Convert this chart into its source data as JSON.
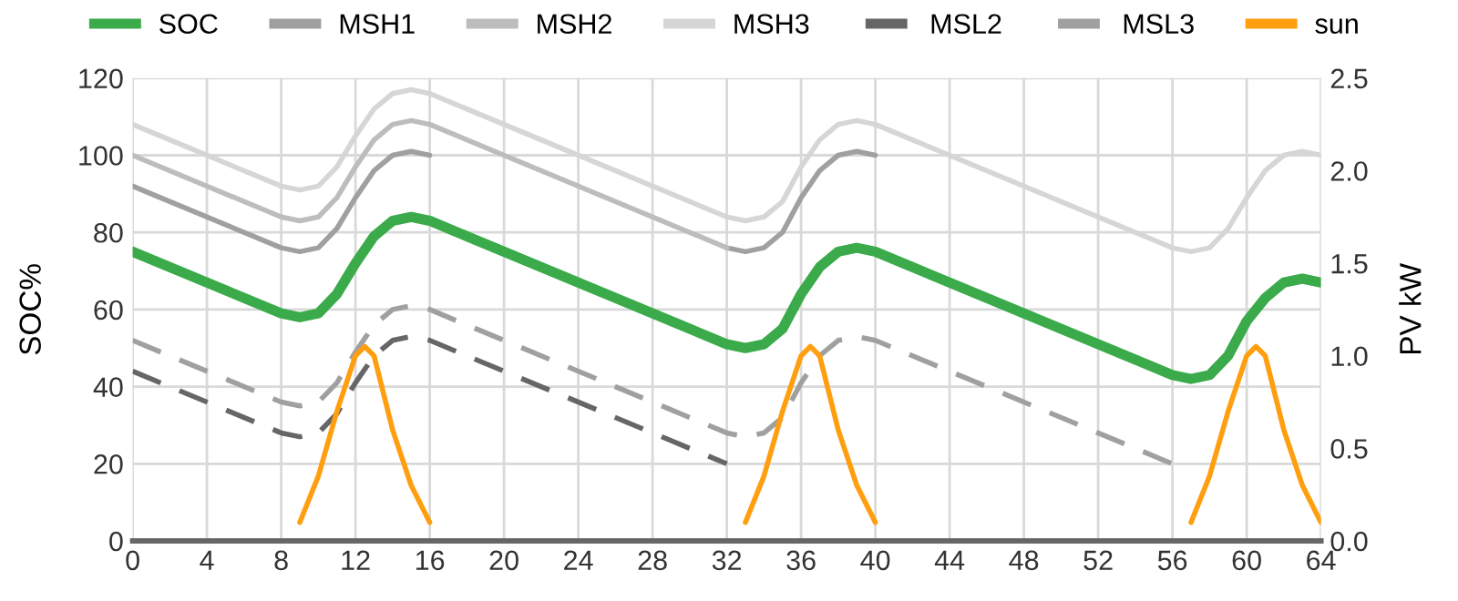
{
  "chart_data": {
    "type": "line",
    "ylabel": "SOC%",
    "y2label": "PV kW",
    "xlim": [
      0,
      64
    ],
    "xticks": [
      0,
      4,
      8,
      12,
      16,
      20,
      24,
      28,
      32,
      36,
      40,
      44,
      48,
      52,
      56,
      60,
      64
    ],
    "ylim": [
      0,
      120
    ],
    "yticks": [
      0,
      20,
      40,
      60,
      80,
      100,
      120
    ],
    "y2lim": [
      0,
      2.5
    ],
    "y2ticks": [
      {
        "value": 0,
        "label": "0.0"
      },
      0.5,
      {
        "value": 1,
        "label": "1.0"
      },
      1.5,
      {
        "value": 2,
        "label": "2.0"
      },
      2.5
    ],
    "grid": true,
    "legend": "top",
    "series": [
      {
        "name": "SOC",
        "color": "#3aaa4a",
        "line_style": "solid",
        "x": [
          0,
          8,
          9,
          10,
          11,
          12,
          13,
          14,
          15,
          16,
          32,
          33,
          34,
          35,
          36,
          37,
          38,
          39,
          40,
          56,
          57,
          58,
          59,
          60,
          61,
          62,
          63,
          64
        ],
        "values": [
          75,
          59,
          58,
          59,
          64,
          72,
          79,
          83,
          84,
          83,
          51,
          50,
          51,
          55,
          64,
          71,
          75,
          76,
          75,
          43,
          42,
          43,
          48,
          57,
          63,
          67,
          68,
          67
        ]
      },
      {
        "name": "MSH1",
        "color": "#a0a0a0",
        "line_style": "solid",
        "x": [
          0,
          8,
          9,
          10,
          11,
          12,
          13,
          14,
          15,
          16,
          24,
          32,
          33,
          34,
          35,
          36,
          37,
          38,
          39,
          40
        ],
        "values": [
          92,
          76,
          75,
          76,
          81,
          89,
          96,
          100,
          101,
          100,
          null,
          76,
          75,
          76,
          80,
          89,
          96,
          100,
          101,
          100
        ]
      },
      {
        "name": "MSH2",
        "color": "#bdbdbd",
        "line_style": "solid",
        "x": [
          0,
          8,
          9,
          10,
          11,
          12,
          13,
          14,
          15,
          16,
          32
        ],
        "values": [
          100,
          84,
          83,
          84,
          89,
          97,
          104,
          108,
          109,
          108,
          76
        ]
      },
      {
        "name": "MSH3",
        "color": "#d6d6d6",
        "line_style": "solid",
        "x": [
          0,
          8,
          9,
          10,
          11,
          12,
          13,
          14,
          15,
          16,
          32,
          33,
          34,
          35,
          36,
          37,
          38,
          39,
          40,
          56,
          57,
          58,
          59,
          60,
          61,
          62,
          63,
          64
        ],
        "values": [
          108,
          92,
          91,
          92,
          97,
          105,
          112,
          116,
          117,
          116,
          84,
          83,
          84,
          88,
          97,
          104,
          108,
          109,
          108,
          76,
          75,
          76,
          81,
          89,
          96,
          100,
          101,
          100
        ]
      },
      {
        "name": "MSL2",
        "color": "#666666",
        "line_style": "dashed",
        "x": [
          0,
          8,
          9,
          10,
          11,
          12,
          13,
          14,
          15,
          16,
          32
        ],
        "values": [
          44,
          28,
          27,
          28,
          33,
          41,
          48,
          52,
          53,
          52,
          20
        ]
      },
      {
        "name": "MSL3",
        "color": "#a0a0a0",
        "line_style": "dashed",
        "x": [
          0,
          8,
          9,
          10,
          11,
          12,
          13,
          14,
          15,
          16,
          32,
          33,
          34,
          35,
          36,
          37,
          38,
          39,
          40,
          56
        ],
        "values": [
          52,
          36,
          35,
          36,
          41,
          49,
          56,
          60,
          61,
          60,
          28,
          27,
          28,
          32,
          41,
          48,
          52,
          53,
          52,
          20
        ]
      },
      {
        "name": "sun",
        "color": "#ff9e0f",
        "line_style": "solid",
        "axis": "y2",
        "x": [
          9,
          10,
          11,
          12,
          12.5,
          13,
          14,
          15,
          16,
          24,
          33,
          34,
          35,
          36,
          36.5,
          37,
          38,
          39,
          40,
          48,
          57,
          58,
          59,
          60,
          60.5,
          61,
          62,
          63,
          64
        ],
        "values": [
          0.1,
          0.35,
          0.7,
          1.0,
          1.05,
          1.0,
          0.6,
          0.3,
          0.1,
          null,
          0.1,
          0.35,
          0.7,
          1.0,
          1.05,
          1.0,
          0.6,
          0.3,
          0.1,
          null,
          0.1,
          0.35,
          0.7,
          1.0,
          1.05,
          1.0,
          0.6,
          0.3,
          0.1
        ]
      }
    ]
  }
}
